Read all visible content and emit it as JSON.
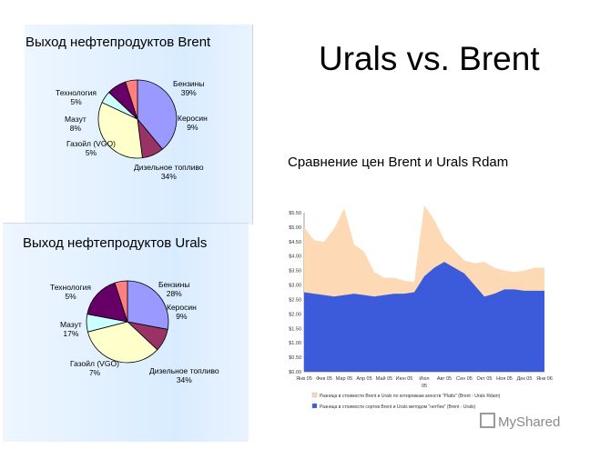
{
  "main_title": "Urals vs. Brent",
  "comparison_title": "Сравнение цен Brent и Urals Rdam",
  "watermark": "MyShared",
  "chart_data": [
    {
      "type": "pie",
      "title": "Выход нефтепродуктов Brent",
      "slices": [
        {
          "name": "Бензины",
          "value": 39,
          "label": "39%",
          "color": "#9999ff"
        },
        {
          "name": "Керосин",
          "value": 9,
          "label": "9%",
          "color": "#993366"
        },
        {
          "name": "Дизельное топливо",
          "value": 34,
          "label": "34%",
          "color": "#ffffcc"
        },
        {
          "name": "Газойл (VGO)",
          "value": 5,
          "label": "5%",
          "color": "#ccffff"
        },
        {
          "name": "Мазут",
          "value": 8,
          "label": "8%",
          "color": "#660066"
        },
        {
          "name": "Технология",
          "value": 5,
          "label": "5%",
          "color": "#ff8080"
        }
      ]
    },
    {
      "type": "pie",
      "title": "Выход нефтепродуктов Urals",
      "slices": [
        {
          "name": "Бензины",
          "value": 28,
          "label": "28%",
          "color": "#9999ff"
        },
        {
          "name": "Керосин",
          "value": 9,
          "label": "9%",
          "color": "#993366"
        },
        {
          "name": "Дизельное топливо",
          "value": 34,
          "label": "34%",
          "color": "#ffffcc"
        },
        {
          "name": "Газойл (VGO)",
          "value": 7,
          "label": "7%",
          "color": "#ccffff"
        },
        {
          "name": "Мазут",
          "value": 17,
          "label": "17%",
          "color": "#660066"
        },
        {
          "name": "Технология",
          "value": 5,
          "label": "5%",
          "color": "#ff8080"
        }
      ]
    },
    {
      "type": "area",
      "stacked": true,
      "categories": [
        "Янв 05",
        "Фев 05",
        "Мар 05",
        "Апр 05",
        "Май 05",
        "Июн 05",
        "Июл 05",
        "Авг 05",
        "Сен 05",
        "Окт 05",
        "Ноя 05",
        "Дек 05",
        "Янв 06"
      ],
      "x": [
        0,
        0.5,
        1,
        1.5,
        2,
        2.5,
        3,
        3.5,
        4,
        4.5,
        5,
        5.5,
        6,
        6.5,
        7,
        7.5,
        8,
        8.5,
        9,
        9.5,
        10,
        10.5,
        11,
        11.5,
        12
      ],
      "ylim": [
        0,
        5.5
      ],
      "yticks": [
        "$0.00",
        "$0.50",
        "$1.00",
        "$1.50",
        "$2.00",
        "$2.50",
        "$3.00",
        "$3.50",
        "$4.00",
        "$4.50",
        "$5.00",
        "$5.50"
      ],
      "grid": false,
      "legend_position": "bottom",
      "series": [
        {
          "name": "Разница в стоимости сортов Brent и Urals методом \"нетбек\" (Brent - Urals)",
          "color": "#3b5bdb",
          "values": [
            2.75,
            2.7,
            2.65,
            2.6,
            2.65,
            2.7,
            2.65,
            2.6,
            2.65,
            2.7,
            2.7,
            2.75,
            3.3,
            3.6,
            3.8,
            3.6,
            3.4,
            3.0,
            2.6,
            2.7,
            2.85,
            2.85,
            2.8,
            2.8,
            2.8
          ]
        },
        {
          "name": "Разница в стоимости Brent и Urals по котировкам агенств \"Platts\" (Brent - Urals Rdam)",
          "color": "#fdd9b5",
          "values": [
            2.25,
            1.85,
            1.85,
            2.35,
            3.0,
            1.7,
            1.5,
            0.85,
            0.6,
            0.55,
            0.45,
            0.35,
            2.45,
            1.65,
            0.75,
            0.6,
            0.45,
            0.75,
            1.2,
            0.9,
            0.65,
            0.6,
            0.7,
            0.8,
            0.8
          ]
        }
      ]
    }
  ]
}
